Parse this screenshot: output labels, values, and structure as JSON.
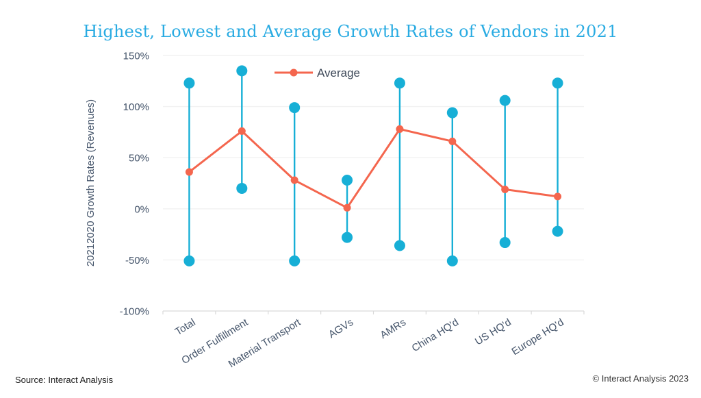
{
  "title": "Highest, Lowest and Average Growth Rates of Vendors in 2021",
  "footer": {
    "source": "Source: Interact Analysis",
    "copyright": "© Interact Analysis 2023"
  },
  "colors": {
    "title": "#29ABE2",
    "range": "#17AFD6",
    "average": "#F4664E",
    "axis_text": "#44546A",
    "gridline": "#F2F2F2",
    "axis_line": "#D9D9D9"
  },
  "chart_data": {
    "type": "line",
    "subtype": "high-low-average-range",
    "title": "Highest, Lowest and Average Growth Rates of Vendors in 2021",
    "xlabel": "",
    "ylabel": "20212020 Growth Rates (Revenues)",
    "categories": [
      "Total",
      "Order Fulfillment",
      "Material Transport",
      "AGVs",
      "AMRs",
      "China HQ'd",
      "US HQ'd",
      "Europe HQ'd"
    ],
    "series": [
      {
        "name": "Highest",
        "values": [
          123,
          135,
          99,
          28,
          123,
          94,
          106,
          123
        ]
      },
      {
        "name": "Lowest",
        "values": [
          -51,
          20,
          -51,
          -28,
          -36,
          -51,
          -33,
          -22
        ]
      },
      {
        "name": "Average",
        "values": [
          36,
          76,
          28,
          1,
          78,
          66,
          19,
          12
        ]
      }
    ],
    "ylim": [
      -100,
      150
    ],
    "yticks": [
      "150%",
      "100%",
      "50%",
      "0%",
      "-50%",
      "-100%"
    ],
    "grid": true,
    "legend": {
      "entries": [
        "Average"
      ],
      "position": "top-inside-left"
    }
  }
}
